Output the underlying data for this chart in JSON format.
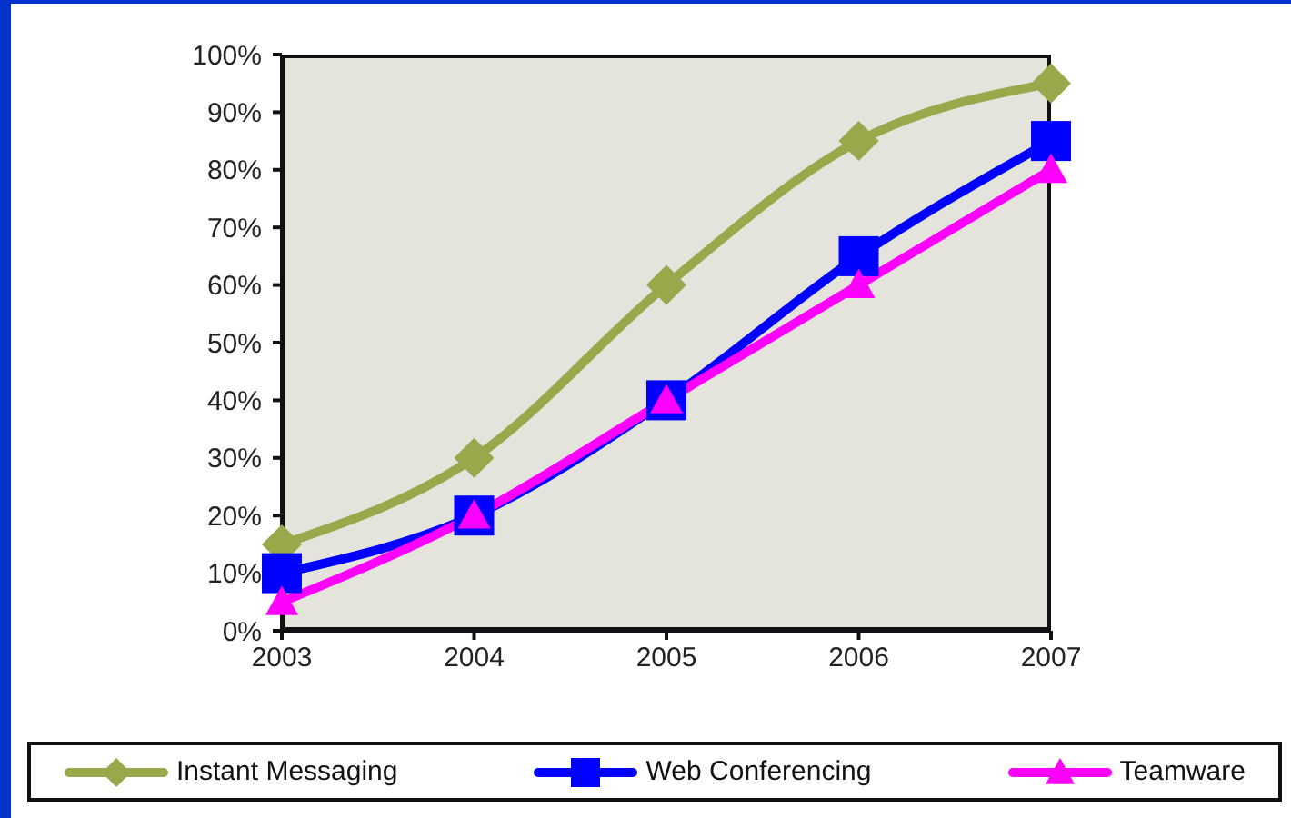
{
  "chart_data": {
    "type": "line",
    "categories": [
      "2003",
      "2004",
      "2005",
      "2006",
      "2007"
    ],
    "series": [
      {
        "name": "Instant Messaging",
        "color": "#99a84a",
        "marker": "diamond",
        "values": [
          15,
          30,
          60,
          85,
          95
        ]
      },
      {
        "name": "Web Conferencing",
        "color": "#0000ff",
        "marker": "square",
        "values": [
          10,
          20,
          40,
          65,
          85
        ]
      },
      {
        "name": "Teamware",
        "color": "#ff00ff",
        "marker": "triangle",
        "values": [
          5,
          20,
          40,
          60,
          80
        ]
      }
    ],
    "ylim": [
      0,
      100
    ],
    "yticks": [
      {
        "value": 0,
        "label": "0%"
      },
      {
        "value": 10,
        "label": "10%"
      },
      {
        "value": 20,
        "label": "20%"
      },
      {
        "value": 30,
        "label": "30%"
      },
      {
        "value": 40,
        "label": "40%"
      },
      {
        "value": 50,
        "label": "50%"
      },
      {
        "value": 60,
        "label": "60%"
      },
      {
        "value": 70,
        "label": "70%"
      },
      {
        "value": 80,
        "label": "80%"
      },
      {
        "value": 90,
        "label": "90%"
      },
      {
        "value": 100,
        "label": "100%"
      }
    ],
    "legend": "bottom"
  }
}
